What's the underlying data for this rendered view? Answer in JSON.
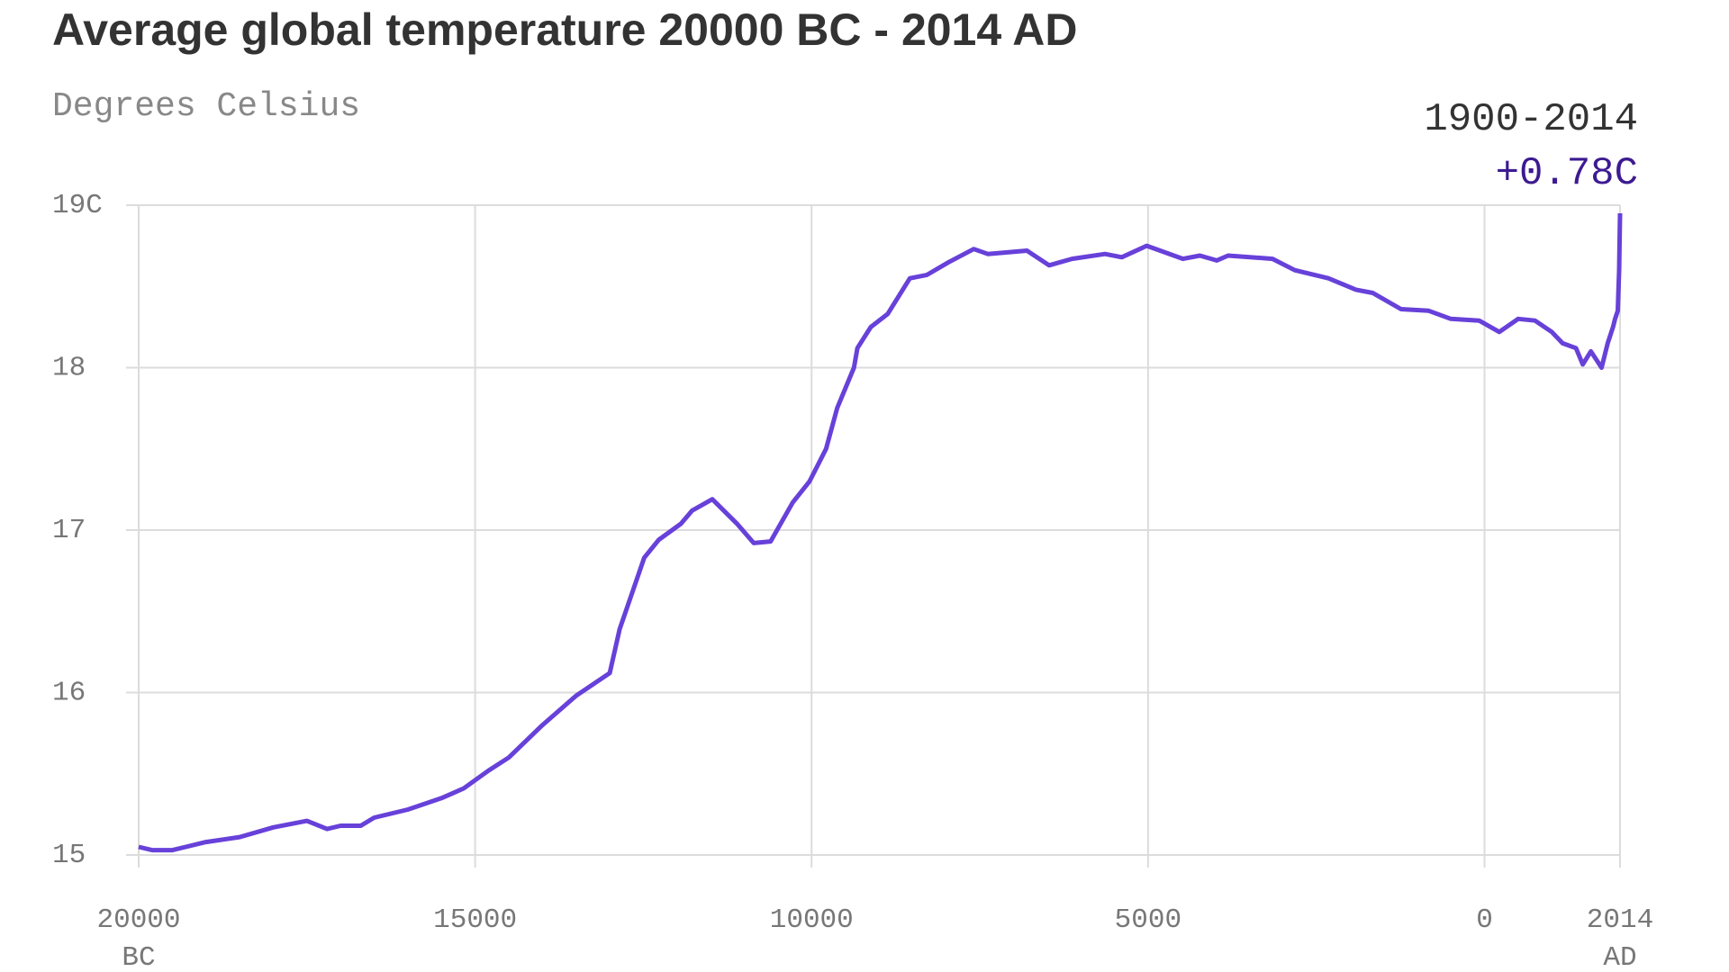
{
  "chart_data": {
    "type": "line",
    "title": "Average global temperature 20000 BC - 2014 AD",
    "subtitle": "Degrees Celsius",
    "annotation": {
      "period": "1900-2014",
      "change": "+0.78C"
    },
    "x": [
      -20000,
      -19800,
      -19500,
      -19300,
      -19000,
      -18500,
      -18000,
      -17500,
      -17200,
      -17000,
      -16700,
      -16500,
      -16000,
      -15500,
      -15170,
      -14800,
      -14500,
      -14000,
      -13500,
      -13000,
      -12852,
      -12487,
      -12272,
      -11940,
      -11775,
      -11476,
      -11110,
      -10860,
      -10610,
      -10280,
      -10030,
      -9785,
      -9620,
      -9370,
      -9320,
      -9120,
      -8870,
      -8540,
      -8290,
      -7960,
      -7590,
      -7380,
      -6800,
      -6470,
      -6130,
      -5640,
      -5390,
      -5020,
      -4480,
      -4230,
      -3980,
      -3810,
      -3150,
      -2820,
      -2320,
      -1910,
      -1660,
      -1240,
      -830,
      -500,
      -80,
      220,
      500,
      750,
      1000,
      1160,
      1360,
      1460,
      1580,
      1740,
      1830,
      1910,
      1940,
      1980,
      2000,
      2014
    ],
    "series": [
      {
        "name": "Average global temperature",
        "color": "#6741d9",
        "values": [
          15.05,
          15.03,
          15.03,
          15.05,
          15.08,
          15.11,
          15.17,
          15.21,
          15.16,
          15.18,
          15.18,
          15.23,
          15.28,
          15.35,
          15.41,
          15.52,
          15.6,
          15.8,
          15.98,
          16.12,
          16.39,
          16.83,
          16.94,
          17.04,
          17.12,
          17.19,
          17.04,
          16.92,
          16.93,
          17.17,
          17.3,
          17.5,
          17.75,
          18.0,
          18.12,
          18.25,
          18.33,
          18.55,
          18.57,
          18.65,
          18.73,
          18.7,
          18.72,
          18.63,
          18.67,
          18.7,
          18.68,
          18.75,
          18.67,
          18.69,
          18.66,
          18.69,
          18.67,
          18.6,
          18.55,
          18.48,
          18.46,
          18.36,
          18.35,
          18.3,
          18.29,
          18.22,
          18.3,
          18.29,
          18.22,
          18.15,
          18.12,
          18.02,
          18.1,
          18.0,
          18.15,
          18.25,
          18.3,
          18.35,
          18.6,
          18.95
        ]
      }
    ],
    "xlim": [
      -20000,
      2014
    ],
    "xticks": [
      {
        "value": -20000,
        "label": "20000",
        "era": "BC"
      },
      {
        "value": -15000,
        "label": "15000"
      },
      {
        "value": -10000,
        "label": "10000"
      },
      {
        "value": -5000,
        "label": "5000"
      },
      0,
      {
        "value": 2014,
        "label": "2014",
        "era": "AD"
      }
    ],
    "ylim": [
      15,
      19
    ],
    "yticks": [
      15,
      16,
      17,
      18,
      {
        "value": 19,
        "label": "19C"
      }
    ],
    "grid": true
  }
}
